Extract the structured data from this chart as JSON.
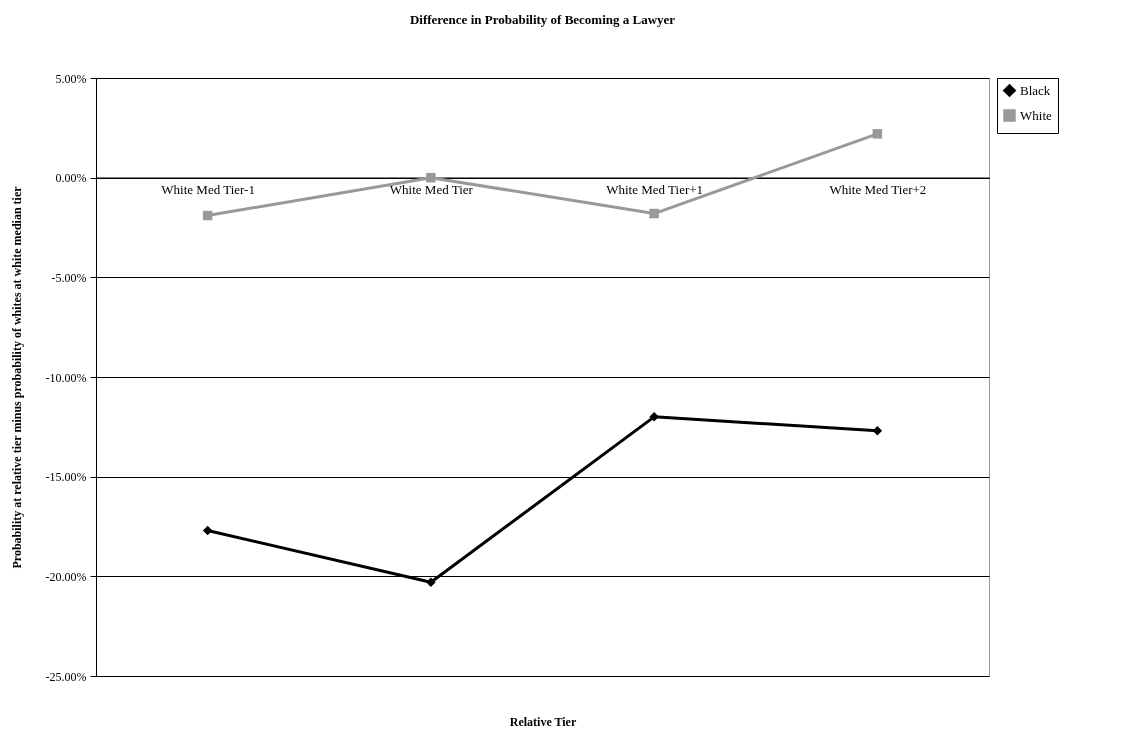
{
  "chart_data": {
    "type": "line",
    "title": "Difference in Probability of Becoming a Lawyer",
    "xlabel": "Relative Tier",
    "ylabel": "Probability at relative tier minus probability of whites at white median tier",
    "categories": [
      "White Med Tier-1",
      "White Med Tier",
      "White Med Tier+1",
      "White Med Tier+2"
    ],
    "series": [
      {
        "name": "Black",
        "color": "#000000",
        "marker": "diamond",
        "values": [
          -17.7,
          -20.3,
          -12.0,
          -12.7
        ]
      },
      {
        "name": "White",
        "color": "#999999",
        "marker": "square",
        "values": [
          -1.9,
          0.0,
          -1.8,
          2.2
        ]
      }
    ],
    "ylim": [
      -25,
      5
    ],
    "yticks": [
      {
        "value": -25,
        "label": "-25.00%"
      },
      {
        "value": -20,
        "label": "-20.00%"
      },
      {
        "value": -15,
        "label": "-15.00%"
      },
      {
        "value": -10,
        "label": "-10.00%"
      },
      {
        "value": -5,
        "label": "-5.00%"
      },
      {
        "value": 0,
        "label": "0.00%"
      },
      {
        "value": 5,
        "label": "5.00%"
      }
    ],
    "grid": "y",
    "legend": "right"
  }
}
